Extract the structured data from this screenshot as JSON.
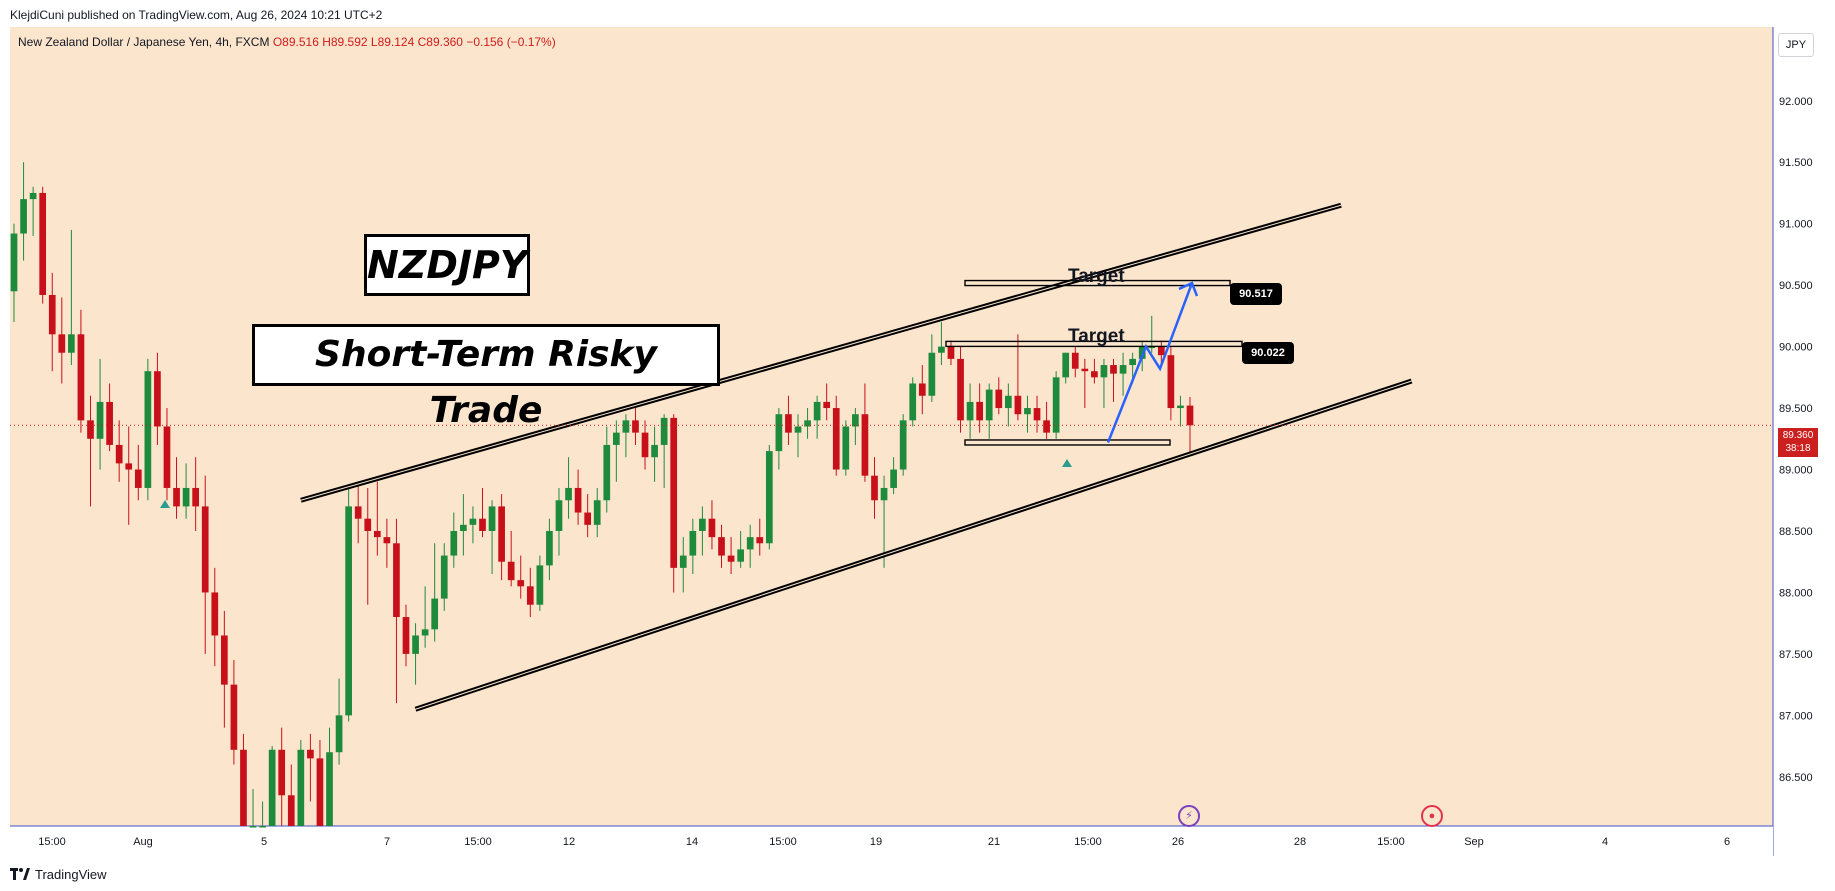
{
  "header": {
    "published_by": "KlejdiCuni published on TradingView.com, Aug 26, 2024 10:21 UTC+2"
  },
  "legend": {
    "instrument": "New Zealand Dollar / Japanese Yen, 4h, FXCM",
    "ohlc": "O89.516 H89.592 L89.124 C89.360 −0.156 (−0.17%)"
  },
  "currency_button": "JPY",
  "annotations": {
    "title": "NZDJPY",
    "subtitle": "Short-Term Risky Trade",
    "target_upper": "Target",
    "target_lower": "Target",
    "price_upper": "90.517",
    "price_lower": "90.022"
  },
  "current_price": {
    "value": "89.360",
    "countdown": "38:18"
  },
  "footer": {
    "brand": "TradingView"
  },
  "colors": {
    "background": "#fbe5cd",
    "up": "#1e8a3c",
    "down": "#c8101a",
    "arrow": "#2962ff",
    "price_line": "#cc1f1f"
  },
  "chart_data": {
    "type": "candlestick",
    "symbol": "NZDJPY",
    "timeframe": "4h",
    "ylim": [
      86.1,
      92.6
    ],
    "y_ticks": [
      "92.000",
      "91.500",
      "91.000",
      "90.500",
      "90.000",
      "89.500",
      "89.000",
      "88.500",
      "88.000",
      "87.500",
      "87.000",
      "86.500"
    ],
    "x_ticks": [
      "15:00",
      "Aug",
      "5",
      "7",
      "15:00",
      "12",
      "14",
      "15:00",
      "19",
      "21",
      "15:00",
      "26",
      "28",
      "15:00",
      "Sep",
      "4",
      "6"
    ],
    "candles": [
      {
        "o": 90.45,
        "h": 91.0,
        "l": 90.2,
        "c": 90.92
      },
      {
        "o": 90.92,
        "h": 91.5,
        "l": 90.7,
        "c": 91.2
      },
      {
        "o": 91.2,
        "h": 91.3,
        "l": 90.9,
        "c": 91.25
      },
      {
        "o": 91.25,
        "h": 91.3,
        "l": 90.35,
        "c": 90.42
      },
      {
        "o": 90.42,
        "h": 90.6,
        "l": 89.8,
        "c": 90.1
      },
      {
        "o": 90.1,
        "h": 90.4,
        "l": 89.7,
        "c": 89.95
      },
      {
        "o": 89.95,
        "h": 90.95,
        "l": 89.85,
        "c": 90.1
      },
      {
        "o": 90.1,
        "h": 90.3,
        "l": 89.3,
        "c": 89.4
      },
      {
        "o": 89.4,
        "h": 89.6,
        "l": 88.7,
        "c": 89.25
      },
      {
        "o": 89.25,
        "h": 89.9,
        "l": 89.0,
        "c": 89.55
      },
      {
        "o": 89.55,
        "h": 89.7,
        "l": 89.15,
        "c": 89.2
      },
      {
        "o": 89.2,
        "h": 89.4,
        "l": 88.9,
        "c": 89.05
      },
      {
        "o": 89.05,
        "h": 89.35,
        "l": 88.55,
        "c": 89.0
      },
      {
        "o": 89.0,
        "h": 89.2,
        "l": 88.75,
        "c": 88.85
      },
      {
        "o": 88.85,
        "h": 89.9,
        "l": 88.75,
        "c": 89.8
      },
      {
        "o": 89.8,
        "h": 89.95,
        "l": 89.2,
        "c": 89.35
      },
      {
        "o": 89.35,
        "h": 89.5,
        "l": 88.75,
        "c": 88.85
      },
      {
        "o": 88.85,
        "h": 89.1,
        "l": 88.6,
        "c": 88.7
      },
      {
        "o": 88.7,
        "h": 89.05,
        "l": 88.6,
        "c": 88.85
      },
      {
        "o": 88.85,
        "h": 89.1,
        "l": 88.5,
        "c": 88.7
      },
      {
        "o": 88.7,
        "h": 88.95,
        "l": 87.5,
        "c": 88.0
      },
      {
        "o": 88.0,
        "h": 88.2,
        "l": 87.4,
        "c": 87.65
      },
      {
        "o": 87.65,
        "h": 87.85,
        "l": 86.9,
        "c": 87.25
      },
      {
        "o": 87.25,
        "h": 87.45,
        "l": 86.6,
        "c": 86.72
      },
      {
        "o": 86.72,
        "h": 86.85,
        "l": 86.1,
        "c": 86.1
      },
      {
        "o": 86.1,
        "h": 86.4,
        "l": 86.0,
        "c": 86.1
      },
      {
        "o": 86.1,
        "h": 86.3,
        "l": 86.0,
        "c": 86.1
      },
      {
        "o": 86.1,
        "h": 86.75,
        "l": 86.0,
        "c": 86.72
      },
      {
        "o": 86.72,
        "h": 86.9,
        "l": 86.1,
        "c": 86.35
      },
      {
        "o": 86.35,
        "h": 86.6,
        "l": 86.0,
        "c": 86.1
      },
      {
        "o": 86.1,
        "h": 86.8,
        "l": 86.0,
        "c": 86.72
      },
      {
        "o": 86.72,
        "h": 86.85,
        "l": 86.3,
        "c": 86.65
      },
      {
        "o": 86.65,
        "h": 86.8,
        "l": 86.0,
        "c": 86.1
      },
      {
        "o": 86.1,
        "h": 86.9,
        "l": 86.0,
        "c": 86.7
      },
      {
        "o": 86.7,
        "h": 87.3,
        "l": 86.6,
        "c": 87.0
      },
      {
        "o": 87.0,
        "h": 88.85,
        "l": 86.95,
        "c": 88.7
      },
      {
        "o": 88.7,
        "h": 88.9,
        "l": 88.4,
        "c": 88.6
      },
      {
        "o": 88.6,
        "h": 88.85,
        "l": 87.9,
        "c": 88.5
      },
      {
        "o": 88.5,
        "h": 88.9,
        "l": 88.3,
        "c": 88.45
      },
      {
        "o": 88.45,
        "h": 88.6,
        "l": 88.2,
        "c": 88.4
      },
      {
        "o": 88.4,
        "h": 88.6,
        "l": 87.1,
        "c": 87.8
      },
      {
        "o": 87.8,
        "h": 87.9,
        "l": 87.4,
        "c": 87.5
      },
      {
        "o": 87.5,
        "h": 87.75,
        "l": 87.25,
        "c": 87.65
      },
      {
        "o": 87.65,
        "h": 88.05,
        "l": 87.55,
        "c": 87.7
      },
      {
        "o": 87.7,
        "h": 88.4,
        "l": 87.6,
        "c": 87.95
      },
      {
        "o": 87.95,
        "h": 88.4,
        "l": 87.85,
        "c": 88.3
      },
      {
        "o": 88.3,
        "h": 88.65,
        "l": 88.2,
        "c": 88.5
      },
      {
        "o": 88.5,
        "h": 88.8,
        "l": 88.3,
        "c": 88.55
      },
      {
        "o": 88.55,
        "h": 88.7,
        "l": 88.4,
        "c": 88.6
      },
      {
        "o": 88.6,
        "h": 88.85,
        "l": 88.45,
        "c": 88.5
      },
      {
        "o": 88.5,
        "h": 88.75,
        "l": 88.15,
        "c": 88.7
      },
      {
        "o": 88.7,
        "h": 88.8,
        "l": 88.1,
        "c": 88.25
      },
      {
        "o": 88.25,
        "h": 88.5,
        "l": 88.05,
        "c": 88.1
      },
      {
        "o": 88.1,
        "h": 88.3,
        "l": 87.95,
        "c": 88.05
      },
      {
        "o": 88.05,
        "h": 88.2,
        "l": 87.8,
        "c": 87.9
      },
      {
        "o": 87.9,
        "h": 88.3,
        "l": 87.85,
        "c": 88.22
      },
      {
        "o": 88.22,
        "h": 88.6,
        "l": 88.1,
        "c": 88.5
      },
      {
        "o": 88.5,
        "h": 88.85,
        "l": 88.3,
        "c": 88.75
      },
      {
        "o": 88.75,
        "h": 89.1,
        "l": 88.6,
        "c": 88.85
      },
      {
        "o": 88.85,
        "h": 89.0,
        "l": 88.55,
        "c": 88.65
      },
      {
        "o": 88.65,
        "h": 88.8,
        "l": 88.45,
        "c": 88.55
      },
      {
        "o": 88.55,
        "h": 88.85,
        "l": 88.45,
        "c": 88.75
      },
      {
        "o": 88.75,
        "h": 89.35,
        "l": 88.65,
        "c": 89.2
      },
      {
        "o": 89.2,
        "h": 89.4,
        "l": 88.9,
        "c": 89.3
      },
      {
        "o": 89.3,
        "h": 89.45,
        "l": 89.1,
        "c": 89.4
      },
      {
        "o": 89.4,
        "h": 89.5,
        "l": 89.2,
        "c": 89.3
      },
      {
        "o": 89.3,
        "h": 89.4,
        "l": 89.0,
        "c": 89.1
      },
      {
        "o": 89.1,
        "h": 89.35,
        "l": 88.9,
        "c": 89.2
      },
      {
        "o": 89.2,
        "h": 89.45,
        "l": 88.85,
        "c": 89.42
      },
      {
        "o": 89.42,
        "h": 89.45,
        "l": 88.0,
        "c": 88.2
      },
      {
        "o": 88.2,
        "h": 88.45,
        "l": 88.0,
        "c": 88.3
      },
      {
        "o": 88.3,
        "h": 88.6,
        "l": 88.15,
        "c": 88.5
      },
      {
        "o": 88.5,
        "h": 88.7,
        "l": 88.3,
        "c": 88.6
      },
      {
        "o": 88.6,
        "h": 88.75,
        "l": 88.35,
        "c": 88.45
      },
      {
        "o": 88.45,
        "h": 88.55,
        "l": 88.2,
        "c": 88.3
      },
      {
        "o": 88.3,
        "h": 88.45,
        "l": 88.15,
        "c": 88.25
      },
      {
        "o": 88.25,
        "h": 88.5,
        "l": 88.2,
        "c": 88.35
      },
      {
        "o": 88.35,
        "h": 88.55,
        "l": 88.2,
        "c": 88.45
      },
      {
        "o": 88.45,
        "h": 88.6,
        "l": 88.3,
        "c": 88.4
      },
      {
        "o": 88.4,
        "h": 89.2,
        "l": 88.35,
        "c": 89.15
      },
      {
        "o": 89.15,
        "h": 89.5,
        "l": 89.0,
        "c": 89.45
      },
      {
        "o": 89.45,
        "h": 89.6,
        "l": 89.2,
        "c": 89.3
      },
      {
        "o": 89.3,
        "h": 89.45,
        "l": 89.1,
        "c": 89.35
      },
      {
        "o": 89.35,
        "h": 89.5,
        "l": 89.25,
        "c": 89.4
      },
      {
        "o": 89.4,
        "h": 89.6,
        "l": 89.25,
        "c": 89.55
      },
      {
        "o": 89.55,
        "h": 89.7,
        "l": 89.4,
        "c": 89.5
      },
      {
        "o": 89.5,
        "h": 89.6,
        "l": 88.95,
        "c": 89.0
      },
      {
        "o": 89.0,
        "h": 89.4,
        "l": 88.95,
        "c": 89.35
      },
      {
        "o": 89.35,
        "h": 89.5,
        "l": 89.2,
        "c": 89.45
      },
      {
        "o": 89.45,
        "h": 89.7,
        "l": 88.9,
        "c": 88.95
      },
      {
        "o": 88.95,
        "h": 89.1,
        "l": 88.6,
        "c": 88.75
      },
      {
        "o": 88.75,
        "h": 88.95,
        "l": 88.2,
        "c": 88.85
      },
      {
        "o": 88.85,
        "h": 89.1,
        "l": 88.8,
        "c": 89.0
      },
      {
        "o": 89.0,
        "h": 89.45,
        "l": 88.95,
        "c": 89.4
      },
      {
        "o": 89.4,
        "h": 89.75,
        "l": 89.35,
        "c": 89.7
      },
      {
        "o": 89.7,
        "h": 89.85,
        "l": 89.45,
        "c": 89.6
      },
      {
        "o": 89.6,
        "h": 90.1,
        "l": 89.55,
        "c": 89.95
      },
      {
        "o": 89.95,
        "h": 90.2,
        "l": 89.85,
        "c": 90.0
      },
      {
        "o": 90.0,
        "h": 90.05,
        "l": 89.85,
        "c": 89.9
      },
      {
        "o": 89.9,
        "h": 90.0,
        "l": 89.3,
        "c": 89.4
      },
      {
        "o": 89.4,
        "h": 89.7,
        "l": 89.25,
        "c": 89.55
      },
      {
        "o": 89.55,
        "h": 89.7,
        "l": 89.3,
        "c": 89.4
      },
      {
        "o": 89.4,
        "h": 89.7,
        "l": 89.25,
        "c": 89.65
      },
      {
        "o": 89.65,
        "h": 89.75,
        "l": 89.45,
        "c": 89.5
      },
      {
        "o": 89.5,
        "h": 89.7,
        "l": 89.35,
        "c": 89.6
      },
      {
        "o": 89.6,
        "h": 90.1,
        "l": 89.4,
        "c": 89.45
      },
      {
        "o": 89.45,
        "h": 89.6,
        "l": 89.3,
        "c": 89.5
      },
      {
        "o": 89.5,
        "h": 89.6,
        "l": 89.3,
        "c": 89.4
      },
      {
        "o": 89.4,
        "h": 89.55,
        "l": 89.25,
        "c": 89.3
      },
      {
        "o": 89.3,
        "h": 89.8,
        "l": 89.25,
        "c": 89.75
      },
      {
        "o": 89.75,
        "h": 89.95,
        "l": 89.7,
        "c": 89.95
      },
      {
        "o": 89.95,
        "h": 90.0,
        "l": 89.75,
        "c": 89.82
      },
      {
        "o": 89.82,
        "h": 89.9,
        "l": 89.5,
        "c": 89.8
      },
      {
        "o": 89.8,
        "h": 89.9,
        "l": 89.7,
        "c": 89.75
      },
      {
        "o": 89.75,
        "h": 89.9,
        "l": 89.5,
        "c": 89.85
      },
      {
        "o": 89.85,
        "h": 89.9,
        "l": 89.55,
        "c": 89.78
      },
      {
        "o": 89.78,
        "h": 89.95,
        "l": 89.6,
        "c": 89.85
      },
      {
        "o": 89.85,
        "h": 89.95,
        "l": 89.7,
        "c": 89.9
      },
      {
        "o": 89.9,
        "h": 90.05,
        "l": 89.8,
        "c": 90.0
      },
      {
        "o": 90.0,
        "h": 90.25,
        "l": 89.95,
        "c": 90.0
      },
      {
        "o": 90.0,
        "h": 90.05,
        "l": 89.85,
        "c": 89.93
      },
      {
        "o": 89.93,
        "h": 90.0,
        "l": 89.4,
        "c": 89.5
      },
      {
        "o": 89.5,
        "h": 89.6,
        "l": 89.35,
        "c": 89.52
      },
      {
        "o": 89.52,
        "h": 89.59,
        "l": 89.12,
        "c": 89.36
      }
    ],
    "trend_lines": [
      {
        "name": "upper-channel",
        "points": [
          [
            0.165,
            88.75
          ],
          [
            0.755,
            91.15
          ]
        ]
      },
      {
        "name": "lower-channel",
        "points": [
          [
            0.23,
            87.05
          ],
          [
            0.795,
            89.72
          ]
        ]
      }
    ],
    "levels": [
      {
        "name": "target-upper",
        "value": 90.517
      },
      {
        "name": "target-lower",
        "value": 90.022
      },
      {
        "name": "range-support",
        "value": 89.22
      }
    ],
    "current_price": 89.36
  }
}
